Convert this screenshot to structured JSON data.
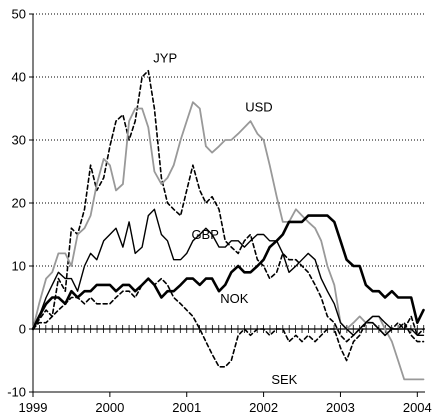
{
  "chart_data": {
    "type": "line",
    "title": "",
    "xlabel": "",
    "ylabel": "",
    "xlim": [
      1999.0,
      2004.1
    ],
    "ylim": [
      -10,
      50
    ],
    "y_ticks": [
      -10,
      0,
      10,
      20,
      30,
      40,
      50
    ],
    "x_ticks": [
      1999,
      2000,
      2001,
      2002,
      2003,
      2004
    ],
    "grid": "horizontal dotted",
    "series": [
      {
        "name": "JYP",
        "color": "#000000",
        "dash": "dashed",
        "width": 1.6,
        "x": [
          1999.0,
          1999.08,
          1999.17,
          1999.25,
          1999.33,
          1999.42,
          1999.5,
          1999.58,
          1999.67,
          1999.75,
          1999.83,
          1999.92,
          2000.0,
          2000.08,
          2000.17,
          2000.25,
          2000.33,
          2000.42,
          2000.5,
          2000.58,
          2000.67,
          2000.75,
          2000.83,
          2000.92,
          2001.0,
          2001.08,
          2001.17,
          2001.25,
          2001.33,
          2001.42,
          2001.5,
          2001.58,
          2001.67,
          2001.75,
          2001.83,
          2001.92,
          2002.0,
          2002.08,
          2002.17,
          2002.25,
          2002.33,
          2002.42,
          2002.5,
          2002.58,
          2002.67,
          2002.75,
          2002.83,
          2002.92,
          2003.0,
          2003.08,
          2003.17,
          2003.25,
          2003.33,
          2003.42,
          2003.5,
          2003.58,
          2003.67,
          2003.75,
          2003.83,
          2003.92,
          2004.0,
          2004.08
        ],
        "y": [
          0,
          1.5,
          3,
          2,
          8,
          6,
          16,
          15,
          19,
          26,
          22,
          24,
          29,
          33,
          34,
          30,
          33,
          40,
          41,
          35,
          24,
          20,
          19,
          18,
          22,
          26,
          22,
          20,
          21,
          19,
          14,
          13,
          12,
          14,
          15,
          11,
          10,
          8,
          9,
          12,
          11,
          11,
          10,
          9,
          7,
          5,
          2,
          1,
          -1,
          -2,
          -1,
          0,
          1,
          1,
          0,
          -1,
          0,
          0,
          1,
          -1,
          -2,
          -2
        ]
      },
      {
        "name": "USD",
        "color": "#999999",
        "dash": "solid",
        "width": 1.8,
        "x": [
          1999.0,
          1999.08,
          1999.17,
          1999.25,
          1999.33,
          1999.42,
          1999.5,
          1999.58,
          1999.67,
          1999.75,
          1999.83,
          1999.92,
          2000.0,
          2000.08,
          2000.17,
          2000.25,
          2000.33,
          2000.42,
          2000.5,
          2000.58,
          2000.67,
          2000.75,
          2000.83,
          2000.92,
          2001.0,
          2001.08,
          2001.17,
          2001.25,
          2001.33,
          2001.42,
          2001.5,
          2001.58,
          2001.67,
          2001.75,
          2001.83,
          2001.92,
          2002.0,
          2002.08,
          2002.17,
          2002.25,
          2002.33,
          2002.42,
          2002.5,
          2002.58,
          2002.67,
          2002.75,
          2002.83,
          2002.92,
          2003.0,
          2003.08,
          2003.17,
          2003.25,
          2003.33,
          2003.42,
          2003.5,
          2003.58,
          2003.67,
          2003.75,
          2003.83,
          2003.92,
          2004.0,
          2004.08
        ],
        "y": [
          0,
          4,
          8,
          9,
          12,
          12,
          10,
          15,
          16,
          18,
          23,
          27,
          26,
          22,
          23,
          33,
          35,
          35,
          32,
          25,
          23,
          24,
          26,
          30,
          33,
          36,
          35,
          29,
          28,
          29,
          30,
          30,
          31,
          32,
          33,
          31,
          30,
          26,
          21,
          17,
          17,
          19,
          18,
          17,
          16,
          14,
          10,
          7,
          1,
          0,
          1,
          2,
          1,
          2,
          2,
          0,
          -2,
          -5,
          -8,
          -8,
          -8,
          -8
        ]
      },
      {
        "name": "GBP",
        "color": "#000000",
        "dash": "solid",
        "width": 1.4,
        "x": [
          1999.0,
          1999.08,
          1999.17,
          1999.25,
          1999.33,
          1999.42,
          1999.5,
          1999.58,
          1999.67,
          1999.75,
          1999.83,
          1999.92,
          2000.0,
          2000.08,
          2000.17,
          2000.25,
          2000.33,
          2000.42,
          2000.5,
          2000.58,
          2000.67,
          2000.75,
          2000.83,
          2000.92,
          2001.0,
          2001.08,
          2001.17,
          2001.25,
          2001.33,
          2001.42,
          2001.5,
          2001.58,
          2001.67,
          2001.75,
          2001.83,
          2001.92,
          2002.0,
          2002.08,
          2002.17,
          2002.25,
          2002.33,
          2002.42,
          2002.5,
          2002.58,
          2002.67,
          2002.75,
          2002.83,
          2002.92,
          2003.0,
          2003.08,
          2003.17,
          2003.25,
          2003.33,
          2003.42,
          2003.5,
          2003.58,
          2003.67,
          2003.75,
          2003.83,
          2003.92,
          2004.0,
          2004.08
        ],
        "y": [
          0,
          2,
          5,
          7,
          9,
          8,
          8,
          6,
          10,
          12,
          11,
          14,
          15,
          16,
          13,
          17,
          12,
          13,
          18,
          19,
          15,
          14,
          11,
          11,
          12,
          14,
          15,
          16,
          15,
          13,
          13,
          14,
          14,
          13,
          14,
          15,
          15,
          14,
          14,
          12,
          9,
          10,
          11,
          12,
          11,
          8,
          6,
          4,
          1,
          0,
          -1,
          0,
          1,
          2,
          2,
          1,
          0,
          0,
          0,
          0,
          -1,
          -1
        ]
      },
      {
        "name": "NOK",
        "color": "#000000",
        "dash": "solid",
        "width": 2.6,
        "x": [
          1999.0,
          1999.08,
          1999.17,
          1999.25,
          1999.33,
          1999.42,
          1999.5,
          1999.58,
          1999.67,
          1999.75,
          1999.83,
          1999.92,
          2000.0,
          2000.08,
          2000.17,
          2000.25,
          2000.33,
          2000.42,
          2000.5,
          2000.58,
          2000.67,
          2000.75,
          2000.83,
          2000.92,
          2001.0,
          2001.08,
          2001.17,
          2001.25,
          2001.33,
          2001.42,
          2001.5,
          2001.58,
          2001.67,
          2001.75,
          2001.83,
          2001.92,
          2002.0,
          2002.08,
          2002.17,
          2002.25,
          2002.33,
          2002.42,
          2002.5,
          2002.58,
          2002.67,
          2002.75,
          2002.83,
          2002.92,
          2003.0,
          2003.08,
          2003.17,
          2003.25,
          2003.33,
          2003.42,
          2003.5,
          2003.58,
          2003.67,
          2003.75,
          2003.83,
          2003.92,
          2004.0,
          2004.08
        ],
        "y": [
          0,
          2,
          4,
          5,
          5,
          4,
          6,
          5,
          6,
          6,
          7,
          7,
          7,
          6,
          7,
          7,
          6,
          7,
          8,
          7,
          5,
          6,
          6,
          7,
          8,
          8,
          7,
          8,
          8,
          6,
          7,
          9,
          10,
          9,
          9,
          10,
          11,
          13,
          14,
          15,
          17,
          17,
          17,
          18,
          18,
          18,
          18,
          17,
          14,
          11,
          10,
          10,
          7,
          6,
          6,
          5,
          6,
          5,
          5,
          5,
          1,
          3
        ]
      },
      {
        "name": "SEK",
        "color": "#000000",
        "dash": "dashed",
        "width": 1.6,
        "x": [
          1999.0,
          1999.08,
          1999.17,
          1999.25,
          1999.33,
          1999.42,
          1999.5,
          1999.58,
          1999.67,
          1999.75,
          1999.83,
          1999.92,
          2000.0,
          2000.08,
          2000.17,
          2000.25,
          2000.33,
          2000.42,
          2000.5,
          2000.58,
          2000.67,
          2000.75,
          2000.83,
          2000.92,
          2001.0,
          2001.08,
          2001.17,
          2001.25,
          2001.33,
          2001.42,
          2001.5,
          2001.58,
          2001.67,
          2001.75,
          2001.83,
          2001.92,
          2002.0,
          2002.08,
          2002.17,
          2002.25,
          2002.33,
          2002.42,
          2002.5,
          2002.58,
          2002.67,
          2002.75,
          2002.83,
          2002.92,
          2003.0,
          2003.08,
          2003.17,
          2003.25,
          2003.33,
          2003.42,
          2003.5,
          2003.58,
          2003.67,
          2003.75,
          2003.83,
          2003.92,
          2004.0,
          2004.08
        ],
        "y": [
          0,
          1,
          1,
          2,
          3,
          4,
          5,
          5,
          4,
          5,
          4,
          4,
          4,
          5,
          6,
          6,
          5,
          7,
          8,
          7,
          8,
          7,
          5,
          4,
          3,
          2,
          0,
          -2,
          -4,
          -6,
          -6,
          -5,
          -1,
          0,
          -1,
          0,
          0,
          -1,
          0,
          0,
          -2,
          -1,
          -2,
          -1,
          -2,
          -1,
          0,
          0,
          -3,
          -5,
          -2,
          -1,
          1,
          1,
          0,
          -1,
          0,
          1,
          0,
          2,
          -1,
          0
        ]
      }
    ],
    "labels": [
      {
        "text": "JYP",
        "x": 2000.72,
        "y": 42.3
      },
      {
        "text": "USD",
        "x": 2001.94,
        "y": 34.5
      },
      {
        "text": "GBP",
        "x": 2001.24,
        "y": 14.3
      },
      {
        "text": "NOK",
        "x": 2001.62,
        "y": 4.1
      },
      {
        "text": "SEK",
        "x": 2002.27,
        "y": -8.7
      }
    ]
  }
}
